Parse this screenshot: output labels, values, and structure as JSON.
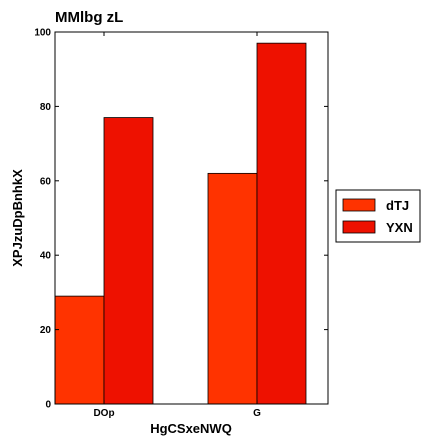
{
  "chart_data": {
    "type": "bar",
    "title": "MMlbg zL",
    "xlabel": "HgCSxeNWQ",
    "ylabel": "XPJzuDpBnhkX",
    "categories": [
      "DOp",
      "G"
    ],
    "series": [
      {
        "name": "dTJ",
        "values": [
          29,
          62
        ],
        "color": "#ff3300"
      },
      {
        "name": "YXN",
        "values": [
          77,
          97
        ],
        "color": "#ee1100"
      }
    ],
    "ylim": [
      0,
      100
    ],
    "yticks": [
      0,
      20,
      40,
      60,
      80,
      100
    ],
    "grid": false,
    "legend": "center-right"
  }
}
